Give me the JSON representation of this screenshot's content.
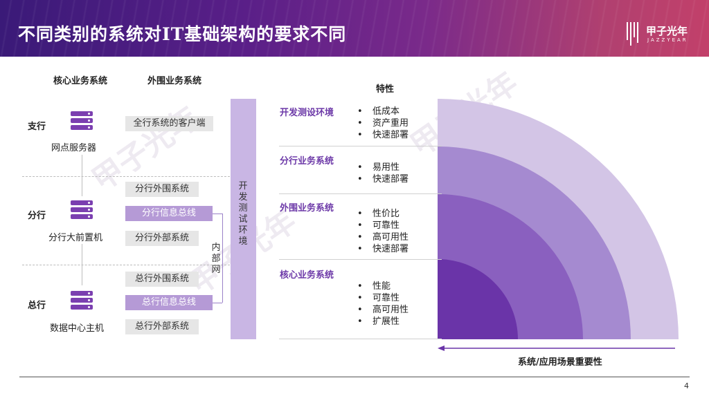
{
  "header": {
    "title": "不同类别的系统对IT基础架构的要求不同"
  },
  "logo": {
    "cn": "甲子光年",
    "en": "JAZZYEAR"
  },
  "left": {
    "col_core": "核心业务系统",
    "col_peripheral": "外围业务系统",
    "rows": [
      {
        "label": "支行",
        "server": "网点服务器",
        "items": [
          "全行系统的客户端"
        ]
      },
      {
        "label": "分行",
        "server": "分行大前置机",
        "items": [
          "分行外围系统",
          "分行信息总线",
          "分行外部系统"
        ]
      },
      {
        "label": "总行",
        "server": "数据中心主机",
        "items": [
          "总行外围系统",
          "总行信息总线",
          "总行外部系统"
        ]
      }
    ],
    "vertical_env": "开发测试环境",
    "intranet": "内部网"
  },
  "right": {
    "header": "特性",
    "sections": [
      {
        "title": "开发测设环境",
        "bullets": [
          "低成本",
          "资产重用",
          "快速部署"
        ]
      },
      {
        "title": "分行业务系统",
        "bullets": [
          "易用性",
          "快速部署"
        ]
      },
      {
        "title": "外围业务系统",
        "bullets": [
          "性价比",
          "可靠性",
          "高可用性",
          "快速部署"
        ]
      },
      {
        "title": "核心业务系统",
        "bullets": [
          "性能",
          "可靠性",
          "高可用性",
          "扩展性"
        ]
      }
    ],
    "arrow_label": "系统/应用场景重要性",
    "colors": [
      "#d3c5e6",
      "#a58ad0",
      "#8a60bf",
      "#6a34a8"
    ]
  },
  "footer": {
    "page": "4"
  }
}
